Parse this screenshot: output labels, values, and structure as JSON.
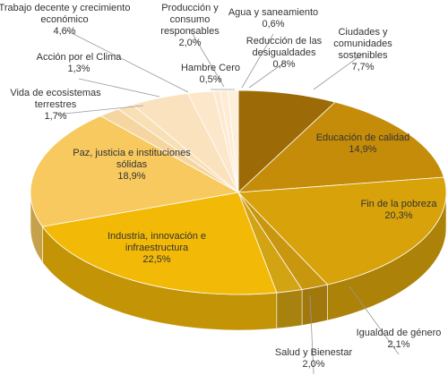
{
  "chart_data": {
    "type": "pie",
    "categories": [
      "Ciudades y comunidades sostenibles",
      "Educación de calidad",
      "Fin de la pobreza",
      "Igualdad de género",
      "Salud y Bienestar",
      "Industria, innovación e infraestructura",
      "Paz, justicia e instituciones sólidas",
      "Vida de ecosistemas terrestres",
      "Acción por el Clima",
      "Trabajo decente y crecimiento económico",
      "Producción y consumo responsables",
      "Hambre Cero",
      "Agua y saneamiento",
      "Reducción de las desigualdades"
    ],
    "values": [
      7.7,
      14.9,
      20.3,
      2.1,
      2.0,
      22.5,
      18.9,
      1.7,
      1.3,
      4.6,
      2.0,
      0.5,
      0.6,
      0.8
    ],
    "value_labels": [
      "7,7%",
      "14,9%",
      "20,3%",
      "2,1%",
      "2,0%",
      "22,5%",
      "18,9%",
      "1,7%",
      "1,3%",
      "4,6%",
      "2,0%",
      "0,5%",
      "0,6%",
      "0,8%"
    ],
    "colors": [
      "#9c6b08",
      "#c58c0a",
      "#d8a20b",
      "#c9960f",
      "#d2a312",
      "#f2b907",
      "#f7c95e",
      "#f5d6a0",
      "#f8dfb6",
      "#fae2bf",
      "#fce7ca",
      "#fde9cf",
      "#feecd5",
      "#feefdb"
    ]
  }
}
